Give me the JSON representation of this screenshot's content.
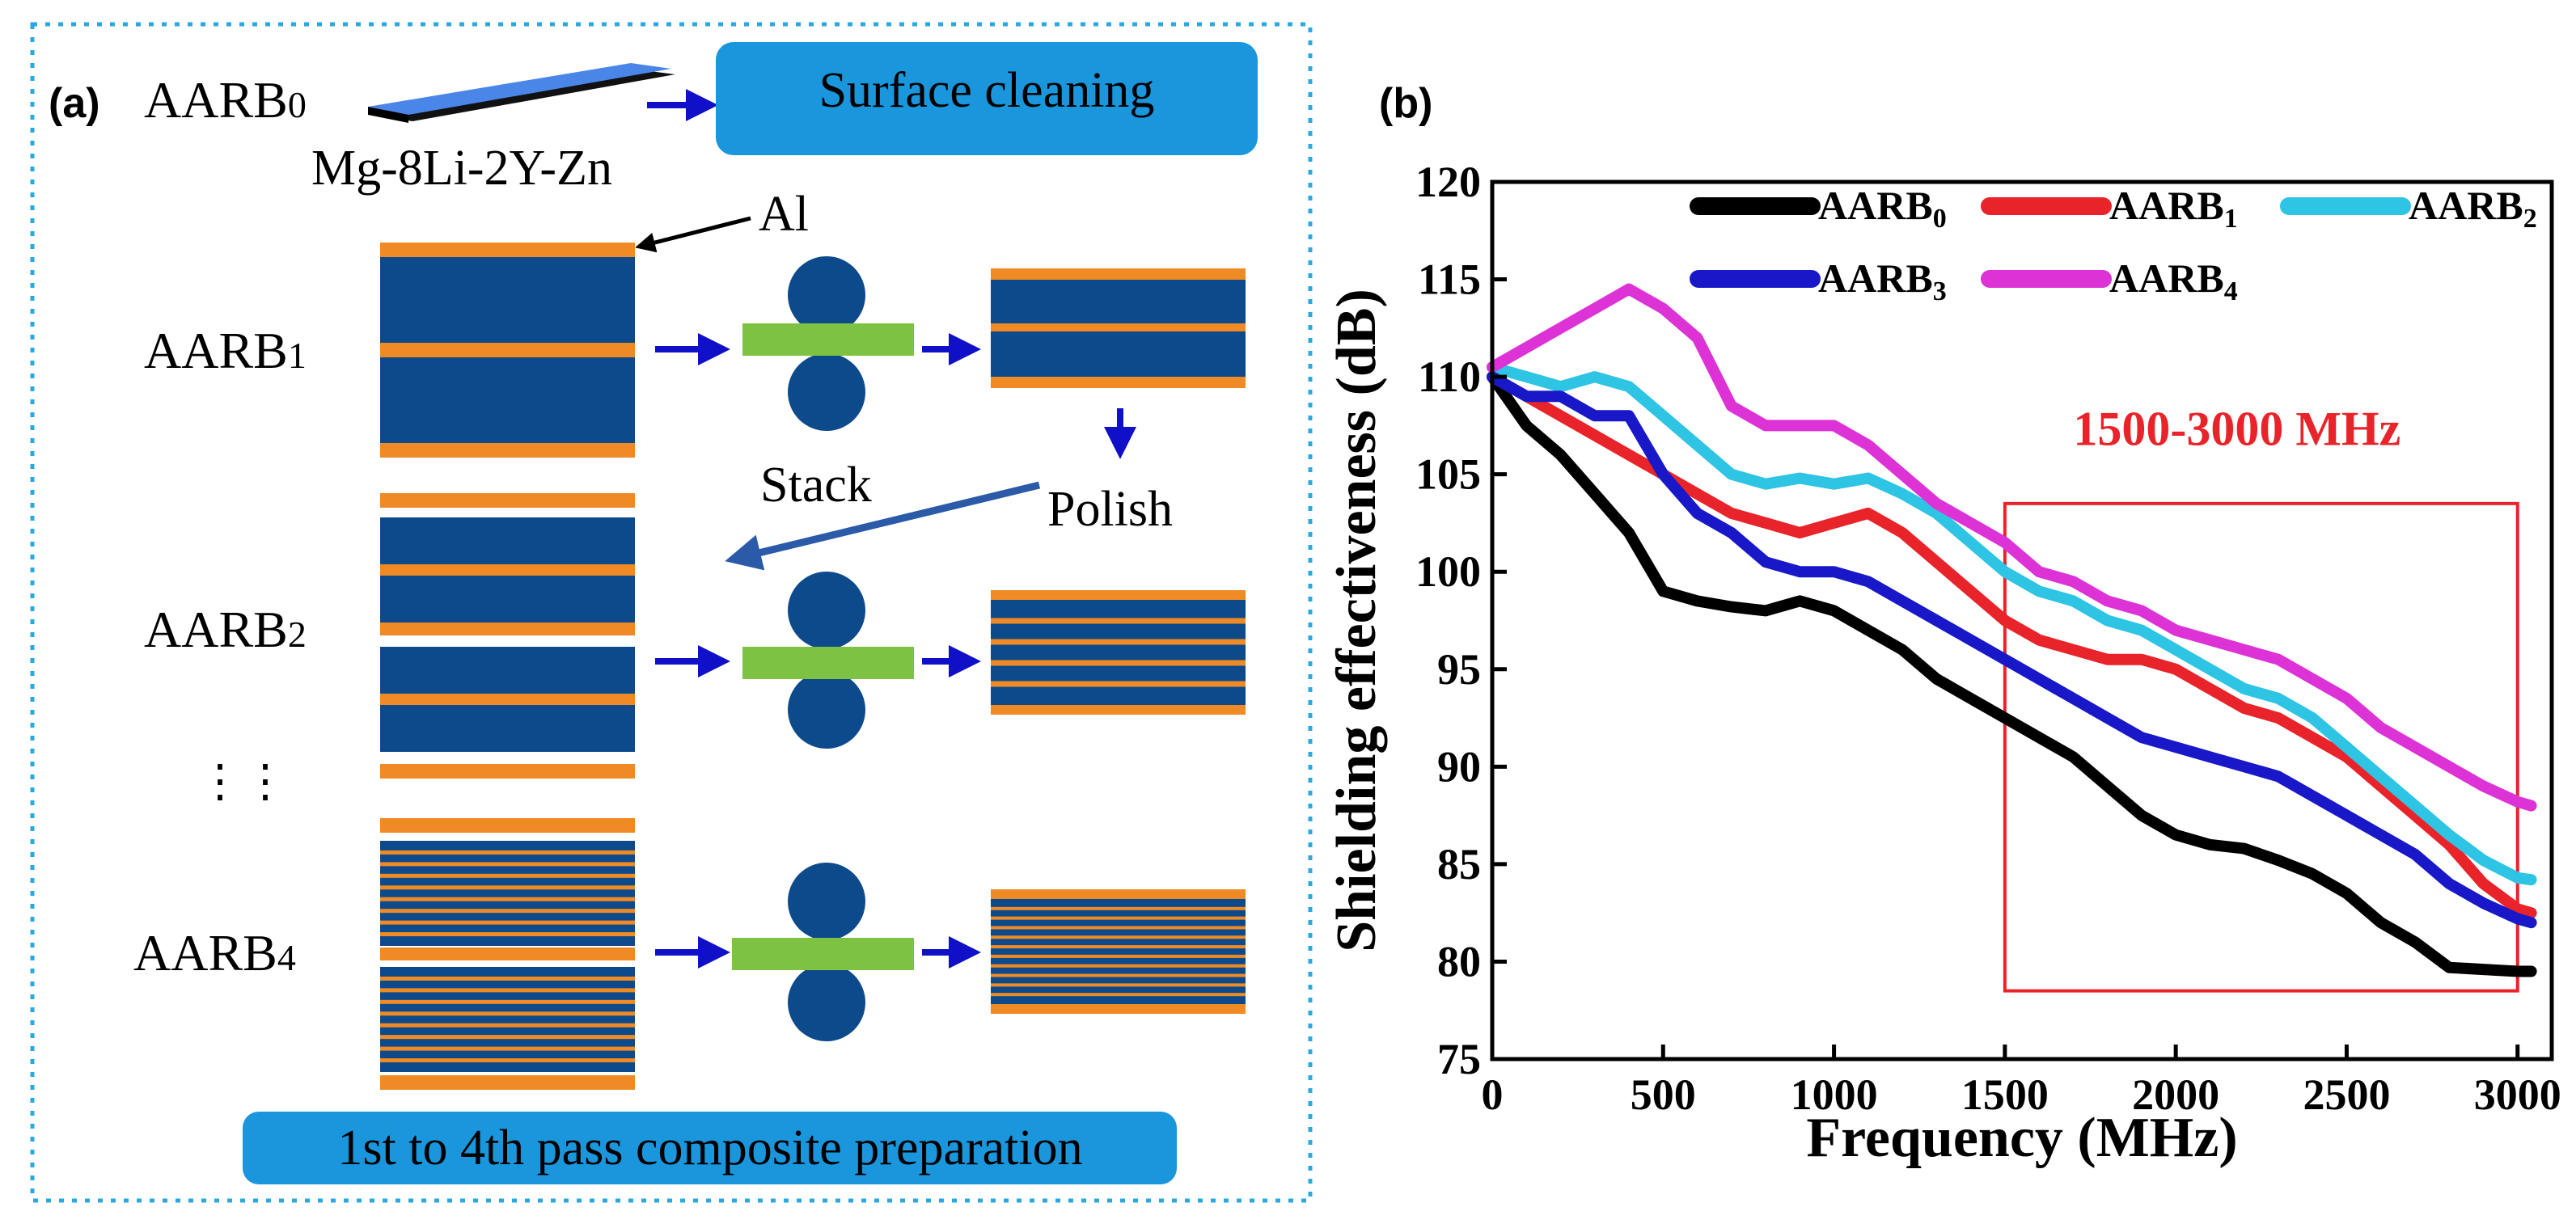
{
  "panel_a": {
    "label": "(a)",
    "aarb0_prefix": "AARB",
    "aarb0_sub": "0",
    "alloy": "Mg-8Li-2Y-Zn",
    "surface_cleaning": "Surface cleaning",
    "al_label": "Al",
    "rows": [
      {
        "prefix": "AARB",
        "sub": "1"
      },
      {
        "prefix": "AARB",
        "sub": "2"
      },
      {
        "prefix": "AARB",
        "sub": "4"
      }
    ],
    "stack": "Stack",
    "polish": "Polish",
    "ellipsis": "⋮⋮",
    "bottom_caption": "1st to 4th pass composite preparation",
    "colors": {
      "mg": "#0d4a8c",
      "al": "#f08a24",
      "roller": "#0d4a8c",
      "sheet": "#7dc242",
      "arrow": "#1010c8",
      "box": "#1a96dc",
      "border": "#2ba8e0",
      "plate_top": "#4a86e8"
    }
  },
  "panel_b": {
    "label": "(b)",
    "annotation": "1500-3000 MHz",
    "annotation_color": "#e8242a",
    "chart_data": {
      "type": "line",
      "xlabel": "Frequency (MHz)",
      "ylabel": "Shielding effectiveness (dB)",
      "xlim": [
        0,
        3100
      ],
      "ylim": [
        75,
        120
      ],
      "xticks": [
        "0",
        "500",
        "1000",
        "1500",
        "2000",
        "2500",
        "3000"
      ],
      "yticks": [
        "75",
        "80",
        "85",
        "90",
        "95",
        "100",
        "105",
        "110",
        "115",
        "120"
      ],
      "highlight_range": [
        1500,
        3000
      ],
      "series": [
        {
          "name": "AARB",
          "sub": "0",
          "color": "#000000",
          "x": [
            0,
            100,
            200,
            300,
            400,
            500,
            600,
            700,
            800,
            900,
            1000,
            1100,
            1200,
            1300,
            1400,
            1500,
            1600,
            1700,
            1800,
            1900,
            2000,
            2100,
            2200,
            2300,
            2400,
            2500,
            2600,
            2700,
            2800,
            2900,
            3000,
            3040
          ],
          "y": [
            110,
            107.5,
            106,
            104,
            102,
            99,
            98.5,
            98.2,
            98,
            98.5,
            98,
            97,
            96,
            94.5,
            93.5,
            92.5,
            91.5,
            90.5,
            89,
            87.5,
            86.5,
            86,
            85.8,
            85.2,
            84.5,
            83.5,
            82,
            81,
            79.7,
            79.6,
            79.5,
            79.5
          ]
        },
        {
          "name": "AARB",
          "sub": "1",
          "color": "#e8242a",
          "x": [
            0,
            100,
            200,
            300,
            400,
            500,
            600,
            700,
            800,
            900,
            1000,
            1100,
            1200,
            1300,
            1400,
            1500,
            1600,
            1700,
            1800,
            1900,
            2000,
            2100,
            2200,
            2300,
            2400,
            2500,
            2600,
            2700,
            2800,
            2900,
            3000,
            3040
          ],
          "y": [
            110,
            109,
            108,
            107,
            106,
            105,
            104,
            103,
            102.5,
            102,
            102.5,
            103,
            102,
            100.5,
            99,
            97.5,
            96.5,
            96,
            95.5,
            95.5,
            95,
            94,
            93,
            92.5,
            91.5,
            90.5,
            89,
            87.5,
            86,
            84,
            82.7,
            82.5
          ]
        },
        {
          "name": "AARB",
          "sub": "2",
          "color": "#2ec4e4",
          "x": [
            0,
            100,
            200,
            300,
            400,
            500,
            600,
            700,
            800,
            900,
            1000,
            1100,
            1200,
            1300,
            1400,
            1500,
            1600,
            1700,
            1800,
            1900,
            2000,
            2100,
            2200,
            2300,
            2400,
            2500,
            2600,
            2700,
            2800,
            2900,
            3000,
            3040
          ],
          "y": [
            110.5,
            110,
            109.5,
            110,
            109.5,
            108,
            106.5,
            105,
            104.5,
            104.8,
            104.5,
            104.8,
            104,
            103,
            101.5,
            100,
            99,
            98.5,
            97.5,
            97,
            96,
            95,
            94,
            93.5,
            92.5,
            91,
            89.5,
            88,
            86.5,
            85.2,
            84.3,
            84.2
          ]
        },
        {
          "name": "AARB",
          "sub": "3",
          "color": "#1818c8",
          "x": [
            0,
            100,
            200,
            300,
            400,
            500,
            600,
            700,
            800,
            900,
            1000,
            1100,
            1200,
            1300,
            1400,
            1500,
            1600,
            1700,
            1800,
            1900,
            2000,
            2100,
            2200,
            2300,
            2400,
            2500,
            2600,
            2700,
            2800,
            2900,
            3000,
            3040
          ],
          "y": [
            110,
            109,
            109,
            108,
            108,
            105,
            103,
            102,
            100.5,
            100,
            100,
            99.5,
            98.5,
            97.5,
            96.5,
            95.5,
            94.5,
            93.5,
            92.5,
            91.5,
            91,
            90.5,
            90,
            89.5,
            88.5,
            87.5,
            86.5,
            85.5,
            84,
            83,
            82.2,
            82
          ]
        },
        {
          "name": "AARB",
          "sub": "4",
          "color": "#dd33d6",
          "x": [
            0,
            100,
            200,
            300,
            400,
            500,
            600,
            700,
            800,
            900,
            1000,
            1100,
            1200,
            1300,
            1400,
            1500,
            1600,
            1700,
            1800,
            1900,
            2000,
            2100,
            2200,
            2300,
            2400,
            2500,
            2600,
            2700,
            2800,
            2900,
            3000,
            3040
          ],
          "y": [
            110.5,
            111.5,
            112.5,
            113.5,
            114.5,
            113.5,
            112,
            108.5,
            107.5,
            107.5,
            107.5,
            106.5,
            105,
            103.5,
            102.5,
            101.5,
            100,
            99.5,
            98.5,
            98,
            97,
            96.5,
            96,
            95.5,
            94.5,
            93.5,
            92,
            91,
            90,
            89,
            88.2,
            88
          ]
        }
      ]
    }
  }
}
